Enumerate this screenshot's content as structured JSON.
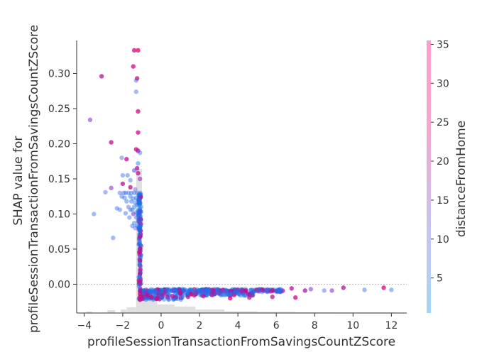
{
  "chart_data": {
    "type": "scatter",
    "title": "",
    "xlabel": "profileSessionTransactionFromSavingsCountZScore",
    "ylabel": "SHAP value for\nprofileSessionTransactionFromSavingsCountZScore",
    "xlim": [
      -4.4,
      12.8
    ],
    "ylim": [
      -0.041,
      0.347
    ],
    "x_ticks": [
      -4,
      -2,
      0,
      2,
      4,
      6,
      8,
      10,
      12
    ],
    "y_ticks": [
      0.0,
      0.05,
      0.1,
      0.15,
      0.2,
      0.25,
      0.3
    ],
    "y_tick_labels": [
      "0.00",
      "0.05",
      "0.10",
      "0.15",
      "0.20",
      "0.25",
      "0.30"
    ],
    "zero_line": true,
    "grid": false,
    "colorbar": {
      "label": "distanceFromHome",
      "min": 0.5,
      "max": 35.5,
      "ticks": [
        5,
        10,
        15,
        20,
        25,
        30,
        35
      ],
      "colors": [
        "#a6d6f5",
        "#c9c2ef",
        "#f3a7cf",
        "#ff9ccd"
      ]
    },
    "histogram": {
      "bins": [
        {
          "x0": -3.9,
          "x1": -3.6,
          "frac": 0.01
        },
        {
          "x0": -2.8,
          "x1": -2.4,
          "frac": 0.02
        },
        {
          "x0": -2.1,
          "x1": -1.8,
          "frac": 0.025
        },
        {
          "x0": -1.8,
          "x1": -1.3,
          "frac": 0.04
        },
        {
          "x0": -1.3,
          "x1": -1.0,
          "frac": 1.0
        },
        {
          "x0": -1.0,
          "x1": -0.2,
          "frac": 0.09
        },
        {
          "x0": -0.2,
          "x1": 0.7,
          "frac": 0.06
        },
        {
          "x0": 0.7,
          "x1": 1.8,
          "frac": 0.045
        },
        {
          "x0": 1.8,
          "x1": 3.3,
          "frac": 0.025
        },
        {
          "x0": 3.3,
          "x1": 5.0,
          "frac": 0.012
        },
        {
          "x0": 5.0,
          "x1": 7.0,
          "frac": 0.008
        },
        {
          "x0": 7.0,
          "x1": 9.0,
          "frac": 0.005
        },
        {
          "x0": 9.0,
          "x1": 12.2,
          "frac": 0.004
        }
      ]
    },
    "points": [
      {
        "x": -1.4,
        "y": 0.333,
        "c": 30
      },
      {
        "x": -1.2,
        "y": 0.333,
        "c": 34
      },
      {
        "x": -1.45,
        "y": 0.31,
        "c": 32
      },
      {
        "x": -1.25,
        "y": 0.293,
        "c": 34
      },
      {
        "x": -3.1,
        "y": 0.296,
        "c": 26
      },
      {
        "x": -1.3,
        "y": 0.29,
        "c": 5
      },
      {
        "x": -1.3,
        "y": 0.274,
        "c": 8
      },
      {
        "x": -1.2,
        "y": 0.246,
        "c": 32
      },
      {
        "x": -3.7,
        "y": 0.234,
        "c": 18
      },
      {
        "x": -1.2,
        "y": 0.216,
        "c": 31
      },
      {
        "x": -2.6,
        "y": 0.202,
        "c": 29
      },
      {
        "x": -1.3,
        "y": 0.192,
        "c": 33
      },
      {
        "x": -1.2,
        "y": 0.19,
        "c": 24
      },
      {
        "x": -1.1,
        "y": 0.187,
        "c": 6
      },
      {
        "x": -2.05,
        "y": 0.18,
        "c": 10
      },
      {
        "x": -1.8,
        "y": 0.178,
        "c": 29
      },
      {
        "x": -1.2,
        "y": 0.172,
        "c": 4
      },
      {
        "x": -1.25,
        "y": 0.165,
        "c": 26
      },
      {
        "x": -1.4,
        "y": 0.162,
        "c": 12
      },
      {
        "x": -1.2,
        "y": 0.158,
        "c": 28
      },
      {
        "x": -2.0,
        "y": 0.155,
        "c": 6
      },
      {
        "x": -1.75,
        "y": 0.155,
        "c": 5
      },
      {
        "x": -1.1,
        "y": 0.15,
        "c": 20
      },
      {
        "x": -1.6,
        "y": 0.148,
        "c": 6
      },
      {
        "x": -2.0,
        "y": 0.143,
        "c": 26
      },
      {
        "x": -1.6,
        "y": 0.138,
        "c": 28
      },
      {
        "x": -2.6,
        "y": 0.137,
        "c": 18
      },
      {
        "x": -1.35,
        "y": 0.135,
        "c": 11
      },
      {
        "x": -2.9,
        "y": 0.131,
        "c": 8
      },
      {
        "x": -2.15,
        "y": 0.13,
        "c": 9
      },
      {
        "x": -1.95,
        "y": 0.13,
        "c": 9
      },
      {
        "x": -1.85,
        "y": 0.13,
        "c": 6
      },
      {
        "x": -1.7,
        "y": 0.13,
        "c": 5
      },
      {
        "x": -1.55,
        "y": 0.13,
        "c": 4
      },
      {
        "x": -1.4,
        "y": 0.13,
        "c": 6
      },
      {
        "x": -1.25,
        "y": 0.13,
        "c": 5
      },
      {
        "x": -1.15,
        "y": 0.128,
        "c": 2
      },
      {
        "x": -2.05,
        "y": 0.125,
        "c": 7
      },
      {
        "x": -1.9,
        "y": 0.123,
        "c": 4
      },
      {
        "x": -1.6,
        "y": 0.125,
        "c": 3
      },
      {
        "x": -1.45,
        "y": 0.122,
        "c": 7
      },
      {
        "x": -1.3,
        "y": 0.123,
        "c": 3
      },
      {
        "x": -1.2,
        "y": 0.12,
        "c": 2
      },
      {
        "x": -1.8,
        "y": 0.118,
        "c": 6
      },
      {
        "x": -1.55,
        "y": 0.118,
        "c": 4
      },
      {
        "x": -1.35,
        "y": 0.116,
        "c": 5
      },
      {
        "x": -1.15,
        "y": 0.115,
        "c": 2
      },
      {
        "x": -1.25,
        "y": 0.113,
        "c": 4
      },
      {
        "x": -1.7,
        "y": 0.11,
        "c": 8
      },
      {
        "x": -1.4,
        "y": 0.11,
        "c": 3
      },
      {
        "x": -1.6,
        "y": 0.106,
        "c": 5
      },
      {
        "x": -2.3,
        "y": 0.108,
        "c": 5
      },
      {
        "x": -2.15,
        "y": 0.106,
        "c": 7
      },
      {
        "x": -1.5,
        "y": 0.106,
        "c": 6
      },
      {
        "x": -1.2,
        "y": 0.105,
        "c": 3
      },
      {
        "x": -1.1,
        "y": 0.104,
        "c": 2
      },
      {
        "x": -1.3,
        "y": 0.102,
        "c": 4
      },
      {
        "x": -1.2,
        "y": 0.101,
        "c": 2
      },
      {
        "x": -3.5,
        "y": 0.1,
        "c": 6
      },
      {
        "x": -1.85,
        "y": 0.101,
        "c": 7
      },
      {
        "x": -1.45,
        "y": 0.1,
        "c": 18
      },
      {
        "x": -1.1,
        "y": 0.098,
        "c": 3
      },
      {
        "x": -1.2,
        "y": 0.097,
        "c": 2
      },
      {
        "x": -1.65,
        "y": 0.095,
        "c": 7
      },
      {
        "x": -1.3,
        "y": 0.095,
        "c": 6
      },
      {
        "x": -1.1,
        "y": 0.093,
        "c": 4
      },
      {
        "x": -1.2,
        "y": 0.09,
        "c": 3
      },
      {
        "x": -1.4,
        "y": 0.087,
        "c": 5
      },
      {
        "x": -1.5,
        "y": 0.083,
        "c": 6
      },
      {
        "x": -1.25,
        "y": 0.083,
        "c": 4
      },
      {
        "x": -1.1,
        "y": 0.082,
        "c": 3
      },
      {
        "x": -1.15,
        "y": 0.08,
        "c": 2
      },
      {
        "x": -1.35,
        "y": 0.08,
        "c": 8
      },
      {
        "x": -2.5,
        "y": 0.066,
        "c": 6
      },
      {
        "x": -1.1,
        "y": 0.011,
        "c": 2
      },
      {
        "x": -1.15,
        "y": -0.003,
        "c": 3
      },
      {
        "x": -1.1,
        "y": -0.006,
        "c": 18
      },
      {
        "x": -1.1,
        "y": -0.01,
        "c": 26
      },
      {
        "x": -1.1,
        "y": -0.014,
        "c": 32
      },
      {
        "x": -1.1,
        "y": -0.018,
        "c": 34
      },
      {
        "x": -1.1,
        "y": -0.022,
        "c": 33
      },
      {
        "x": -0.9,
        "y": -0.009,
        "c": 3
      },
      {
        "x": -0.8,
        "y": -0.012,
        "c": 22
      },
      {
        "x": -0.7,
        "y": -0.016,
        "c": 30
      },
      {
        "x": -0.6,
        "y": -0.009,
        "c": 4
      },
      {
        "x": -0.5,
        "y": -0.019,
        "c": 33
      },
      {
        "x": -0.3,
        "y": -0.009,
        "c": 5
      },
      {
        "x": -0.2,
        "y": -0.02,
        "c": 28
      },
      {
        "x": 0.0,
        "y": -0.008,
        "c": 3
      },
      {
        "x": 0.2,
        "y": -0.013,
        "c": 20
      },
      {
        "x": 0.4,
        "y": -0.009,
        "c": 4
      },
      {
        "x": 0.6,
        "y": -0.017,
        "c": 28
      },
      {
        "x": 0.8,
        "y": -0.008,
        "c": 5
      },
      {
        "x": 1.0,
        "y": -0.013,
        "c": 30
      },
      {
        "x": 1.2,
        "y": -0.009,
        "c": 3
      },
      {
        "x": 1.4,
        "y": -0.018,
        "c": 25
      },
      {
        "x": 1.6,
        "y": -0.008,
        "c": 6
      },
      {
        "x": 1.8,
        "y": -0.012,
        "c": 20
      },
      {
        "x": 2.0,
        "y": -0.009,
        "c": 4
      },
      {
        "x": 2.2,
        "y": -0.017,
        "c": 31
      },
      {
        "x": 2.4,
        "y": -0.008,
        "c": 5
      },
      {
        "x": 2.7,
        "y": -0.011,
        "c": 22
      },
      {
        "x": 3.0,
        "y": -0.009,
        "c": 4
      },
      {
        "x": 3.3,
        "y": -0.01,
        "c": 18
      },
      {
        "x": 3.6,
        "y": -0.02,
        "c": 33
      },
      {
        "x": 3.9,
        "y": -0.009,
        "c": 6
      },
      {
        "x": 4.2,
        "y": -0.01,
        "c": 24
      },
      {
        "x": 4.6,
        "y": -0.019,
        "c": 30
      },
      {
        "x": 5.0,
        "y": -0.008,
        "c": 5
      },
      {
        "x": 5.5,
        "y": -0.009,
        "c": 16
      },
      {
        "x": 5.8,
        "y": -0.018,
        "c": 27
      },
      {
        "x": 6.2,
        "y": -0.009,
        "c": 7
      },
      {
        "x": 6.8,
        "y": -0.006,
        "c": 28
      },
      {
        "x": 7.0,
        "y": -0.019,
        "c": 31
      },
      {
        "x": 7.5,
        "y": -0.009,
        "c": 24
      },
      {
        "x": 7.8,
        "y": -0.007,
        "c": 16
      },
      {
        "x": 8.5,
        "y": -0.009,
        "c": 8
      },
      {
        "x": 8.9,
        "y": -0.009,
        "c": 19
      },
      {
        "x": 9.5,
        "y": -0.005,
        "c": 27
      },
      {
        "x": 10.6,
        "y": -0.008,
        "c": 6
      },
      {
        "x": 11.6,
        "y": -0.005,
        "c": 33
      },
      {
        "x": 12.0,
        "y": -0.008,
        "c": 5
      }
    ],
    "cluster_bands": [
      {
        "x0": -1.1,
        "x1": 6.4,
        "y": -0.009,
        "count": 260
      },
      {
        "x0": -1.1,
        "x1": 4.8,
        "y": -0.014,
        "count": 120
      },
      {
        "x0": -1.15,
        "x1": 1.2,
        "y": -0.02,
        "count": 50
      }
    ],
    "vertical_cluster": {
      "x": -1.1,
      "y0": 0.0,
      "y1": 0.13,
      "count": 110
    }
  }
}
